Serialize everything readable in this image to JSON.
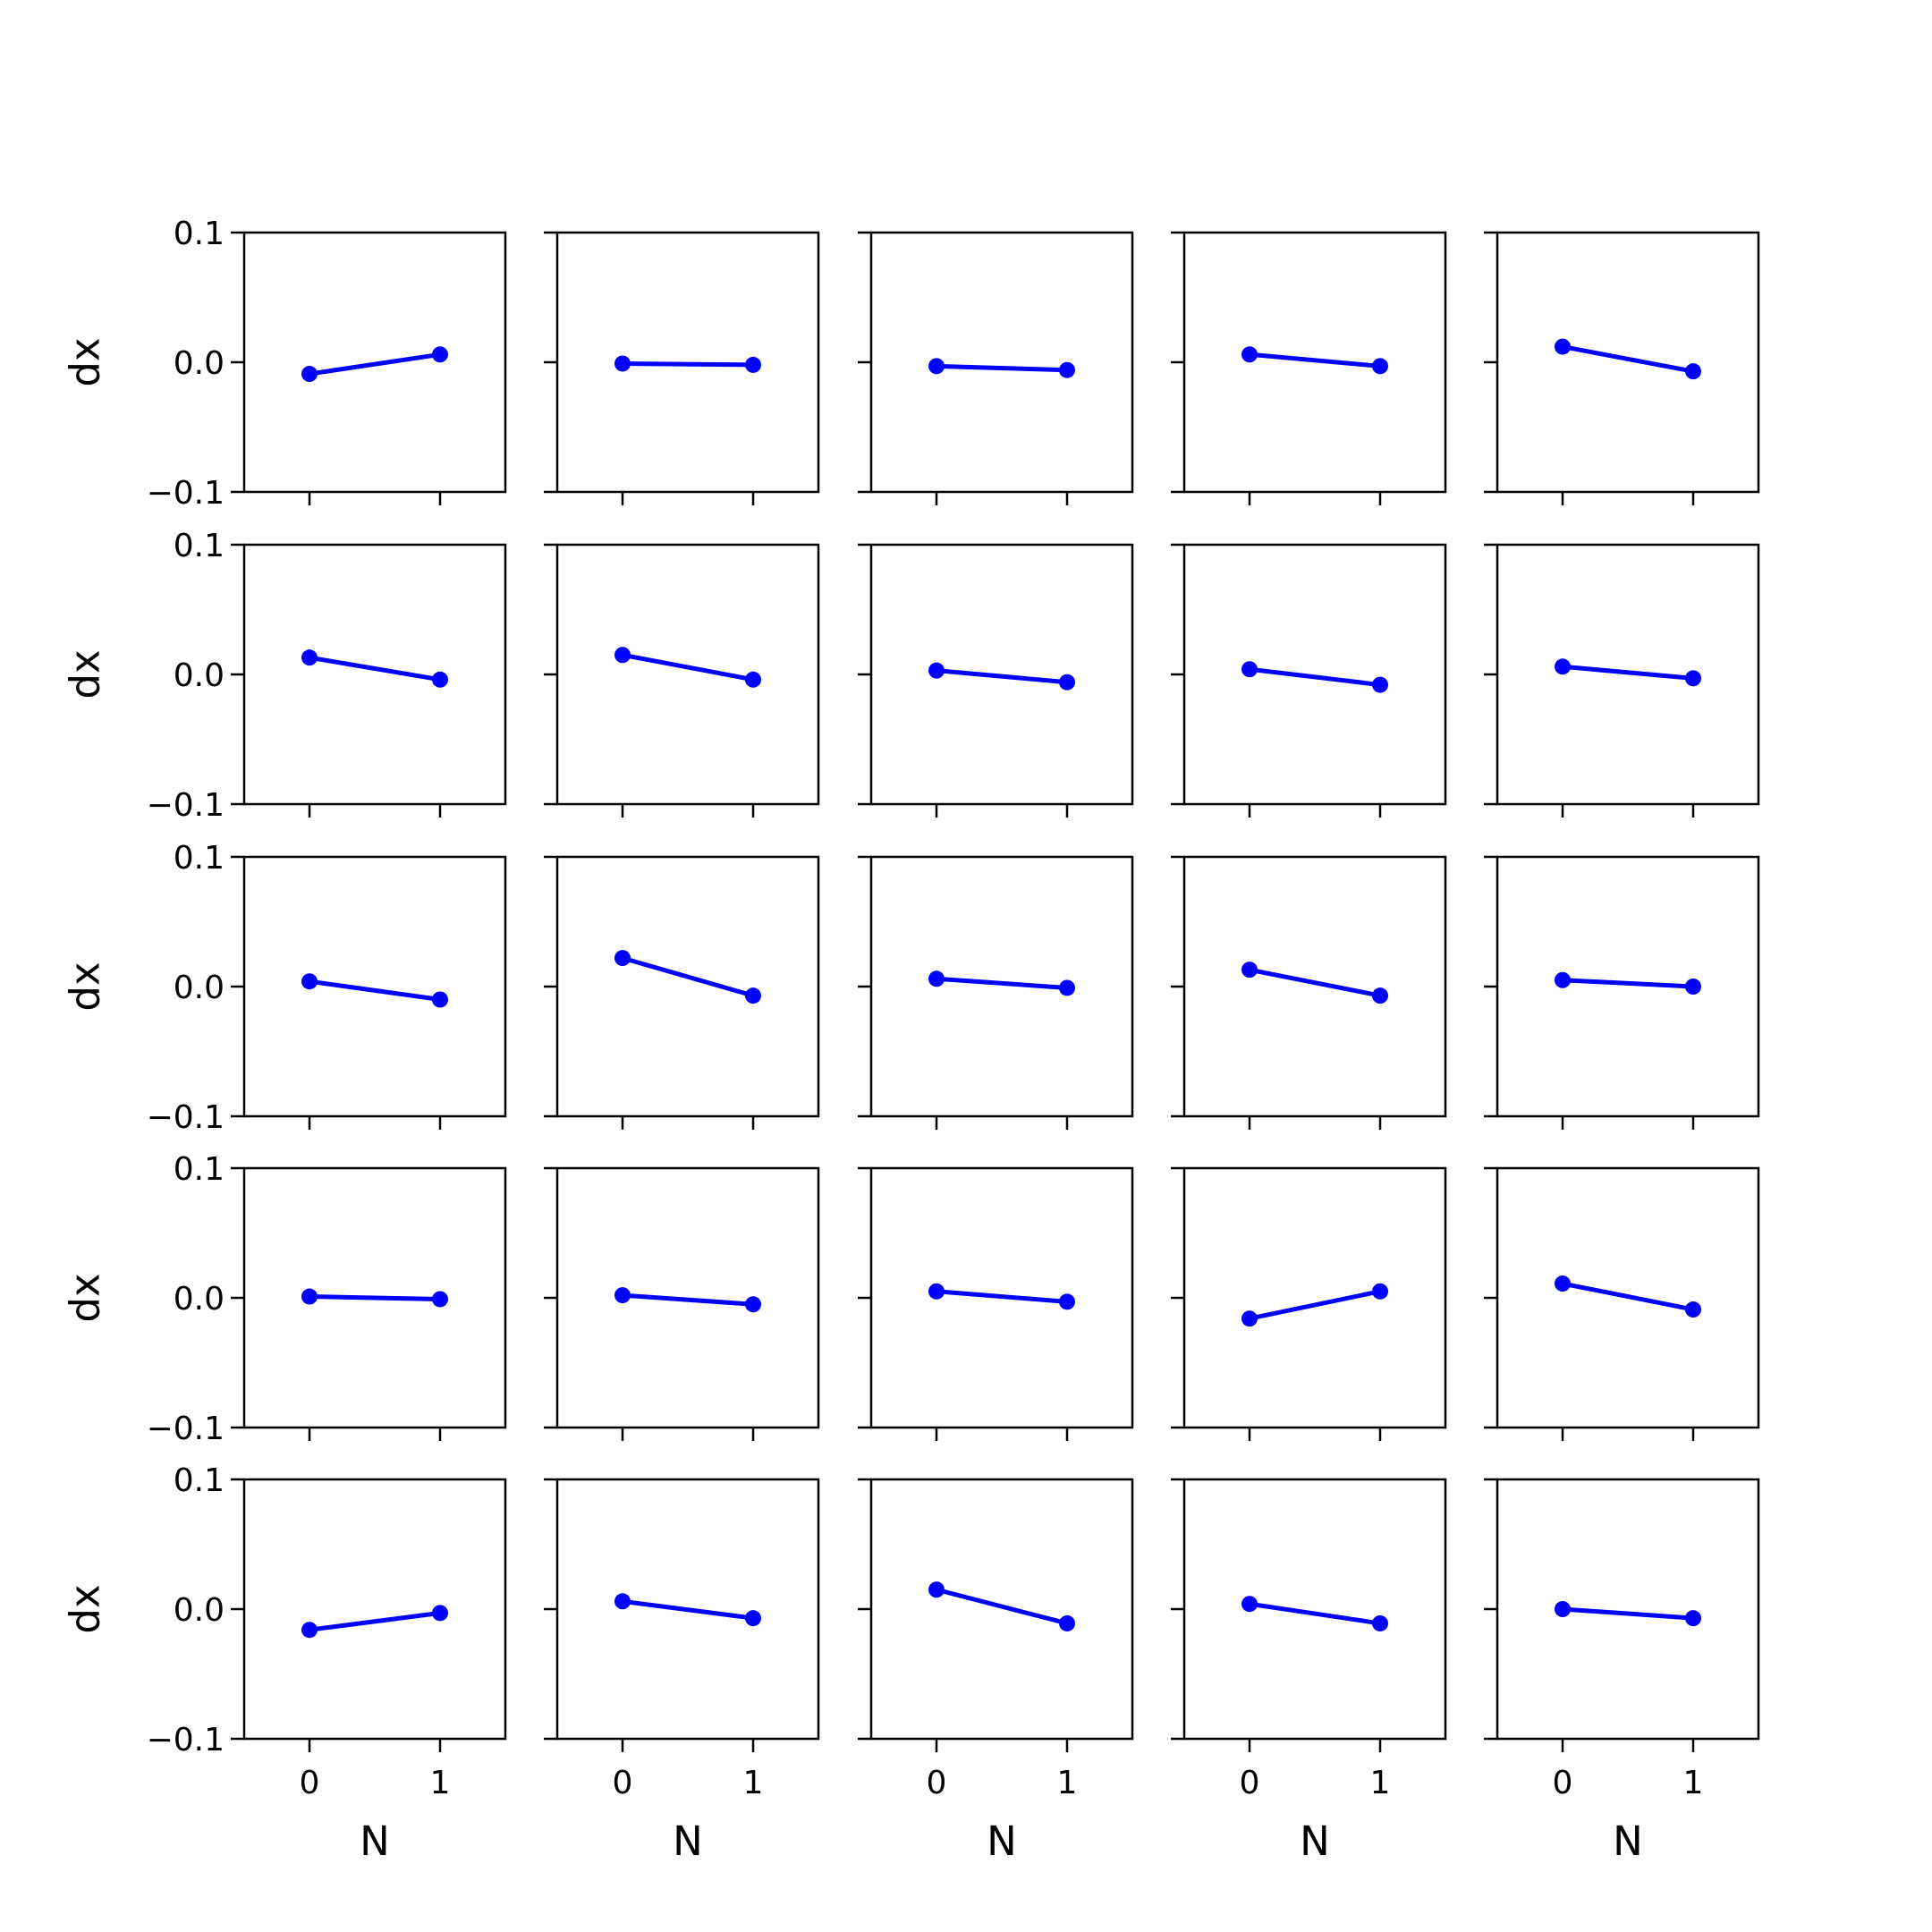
{
  "chart_data": {
    "type": "line",
    "layout": {
      "rows": 5,
      "cols": 5,
      "sharex": true,
      "sharey": true
    },
    "xlabel": "N",
    "ylabel": "dx",
    "xlim": [
      -0.5,
      1.5
    ],
    "ylim": [
      -0.1,
      0.1
    ],
    "x_ticks": [
      0,
      1
    ],
    "x_tick_labels": [
      "0",
      "1"
    ],
    "y_ticks": [
      -0.1,
      0.0,
      0.1
    ],
    "y_tick_labels": [
      "−0.1",
      "0.0",
      "0.1"
    ],
    "grid": false,
    "line_color": "#0000ff",
    "marker": "circle",
    "x": [
      0,
      1
    ],
    "panels": [
      {
        "values": [
          -0.009,
          0.006
        ]
      },
      {
        "values": [
          -0.001,
          -0.002
        ]
      },
      {
        "values": [
          -0.003,
          -0.006
        ]
      },
      {
        "values": [
          0.006,
          -0.003
        ]
      },
      {
        "values": [
          0.012,
          -0.007
        ]
      },
      {
        "values": [
          0.013,
          -0.004
        ]
      },
      {
        "values": [
          0.015,
          -0.004
        ]
      },
      {
        "values": [
          0.003,
          -0.006
        ]
      },
      {
        "values": [
          0.004,
          -0.008
        ]
      },
      {
        "values": [
          0.006,
          -0.003
        ]
      },
      {
        "values": [
          0.004,
          -0.01
        ]
      },
      {
        "values": [
          0.022,
          -0.007
        ]
      },
      {
        "values": [
          0.006,
          -0.001
        ]
      },
      {
        "values": [
          0.013,
          -0.007
        ]
      },
      {
        "values": [
          0.005,
          0.0
        ]
      },
      {
        "values": [
          0.001,
          -0.001
        ]
      },
      {
        "values": [
          0.002,
          -0.005
        ]
      },
      {
        "values": [
          0.005,
          -0.003
        ]
      },
      {
        "values": [
          -0.016,
          0.005
        ]
      },
      {
        "values": [
          0.011,
          -0.009
        ]
      },
      {
        "values": [
          -0.016,
          -0.003
        ]
      },
      {
        "values": [
          0.006,
          -0.007
        ]
      },
      {
        "values": [
          0.015,
          -0.011
        ]
      },
      {
        "values": [
          0.004,
          -0.011
        ]
      },
      {
        "values": [
          0.0,
          -0.007
        ]
      }
    ]
  }
}
